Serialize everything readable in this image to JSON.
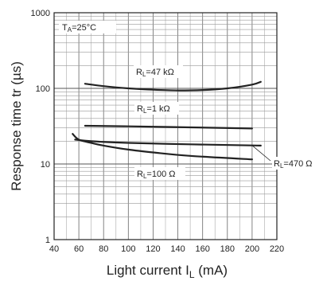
{
  "chart_data": {
    "type": "line",
    "annotation_condition": "TA=25°C",
    "annotation_condition_main": "T",
    "annotation_condition_sub": "A",
    "annotation_condition_rest": "=25°C",
    "xlabel": "Light current I",
    "xlabel_sub": "L",
    "xlabel_unit": " (mA)",
    "ylabel": "Response time tr (µs)",
    "xlim": [
      40,
      220
    ],
    "ylim": [
      1,
      1000
    ],
    "yscale": "log",
    "x_ticks": [
      "40",
      "60",
      "80",
      "100",
      "120",
      "140",
      "160",
      "180",
      "200",
      "220"
    ],
    "y_ticks": [
      "1",
      "10",
      "100",
      "1000"
    ],
    "grid": true,
    "series": [
      {
        "name": "RL=47 kΩ",
        "label_main": "R",
        "label_sub": "L",
        "label_rest": "=47 kΩ",
        "x": [
          65,
          80,
          100,
          120,
          140,
          160,
          180,
          200,
          207
        ],
        "y": [
          115,
          107,
          100,
          96,
          94,
          95,
          100,
          112,
          122
        ]
      },
      {
        "name": "RL=1 kΩ",
        "label_main": "R",
        "label_sub": "L",
        "label_rest": "=1 kΩ",
        "x": [
          65,
          100,
          150,
          200
        ],
        "y": [
          32,
          31.5,
          30.5,
          29.5
        ]
      },
      {
        "name": "RL=470 Ω",
        "label_main": "R",
        "label_sub": "L",
        "label_rest": "=470 Ω",
        "x": [
          57,
          70,
          100,
          150,
          200,
          207
        ],
        "y": [
          21,
          20,
          19,
          18.2,
          17.6,
          17.5
        ]
      },
      {
        "name": "RL=100 Ω",
        "label_main": "R",
        "label_sub": "L",
        "label_rest": "=100 Ω",
        "x": [
          55,
          60,
          70,
          80,
          100,
          120,
          150,
          200
        ],
        "y": [
          25,
          21,
          19,
          17.5,
          15.5,
          14.2,
          12.8,
          11.5
        ]
      }
    ]
  }
}
